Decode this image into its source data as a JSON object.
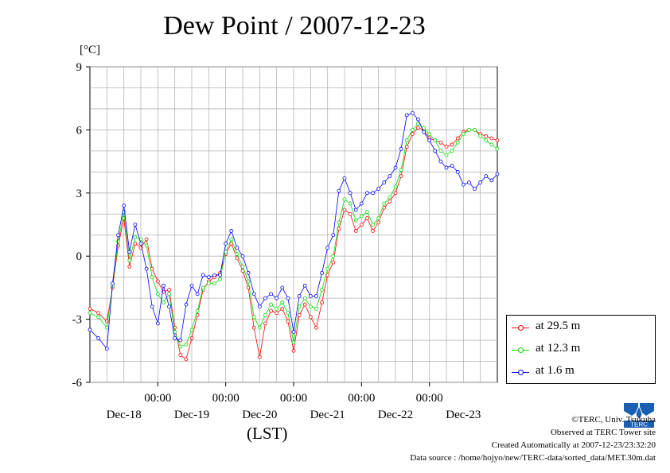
{
  "title": "Dew Point / 2007-12-23",
  "unit": "[°C]",
  "xlabel": "(LST)",
  "legend": [
    {
      "label": "at 29.5 m"
    },
    {
      "label": "at 12.3 m"
    },
    {
      "label": "at 1.6 m"
    }
  ],
  "credits": {
    "copyright": "©TERC, Univ. Tsukuba",
    "observed": "Observed at TERC Tower site",
    "created": "Created Automatically at 2007-12-23/23:32:20",
    "source": "Data source : /home/hojyo/new/TERC-data/sorted_data/MET.30m.dat"
  },
  "logo_text": "TERC",
  "chart_data": {
    "type": "line",
    "title": "Dew Point / 2007-12-23",
    "ylabel": "[°C]",
    "xlabel": "(LST)",
    "ylim": [
      -6,
      9
    ],
    "yticks": [
      -6,
      -3,
      0,
      3,
      6,
      9
    ],
    "xlim": [
      0,
      144
    ],
    "x_unit": "hours from 2007-12-17 24:00 (start of chart)",
    "xticks": [
      {
        "x": 24,
        "time": "00:00",
        "date": "Dec-18"
      },
      {
        "x": 48,
        "time": "00:00",
        "date": "Dec-19"
      },
      {
        "x": 72,
        "time": "00:00",
        "date": "Dec-20"
      },
      {
        "x": 96,
        "time": "00:00",
        "date": "Dec-21"
      },
      {
        "x": 120,
        "time": "00:00",
        "date": "Dec-22"
      }
    ],
    "date_labels": [
      "Dec-18",
      "Dec-19",
      "Dec-20",
      "Dec-21",
      "Dec-22",
      "Dec-23"
    ],
    "grid": true,
    "legend_position": "right",
    "series": [
      {
        "name": "at 29.5 m",
        "color": "#ff0000",
        "x": [
          0,
          3,
          6,
          8,
          10,
          12,
          14,
          16,
          18,
          20,
          22,
          24,
          26,
          28,
          30,
          32,
          34,
          36,
          38,
          40,
          42,
          44,
          46,
          48,
          50,
          52,
          54,
          56,
          58,
          60,
          62,
          64,
          66,
          68,
          70,
          72,
          74,
          76,
          78,
          80,
          82,
          84,
          86,
          88,
          90,
          92,
          94,
          96,
          98,
          100,
          102,
          104,
          106,
          108,
          110,
          112,
          114,
          116,
          118,
          120,
          122,
          124,
          126,
          128,
          130,
          132,
          134,
          136,
          138,
          140,
          142,
          144
        ],
        "values": [
          -2.5,
          -2.7,
          -3.1,
          -1.5,
          0.5,
          1.8,
          -0.5,
          0.6,
          0.4,
          0.8,
          -0.6,
          -1.2,
          -1.7,
          -1.6,
          -3.4,
          -4.7,
          -4.9,
          -3.9,
          -2.8,
          -1.6,
          -1.2,
          -1.0,
          -0.8,
          0.1,
          0.6,
          -0.1,
          -0.7,
          -1.5,
          -3.4,
          -4.8,
          -3.2,
          -2.6,
          -2.7,
          -2.5,
          -3.1,
          -4.5,
          -2.8,
          -2.3,
          -2.9,
          -3.4,
          -2.2,
          -0.9,
          -0.3,
          1.3,
          2.2,
          2.0,
          1.2,
          1.5,
          1.8,
          1.2,
          1.6,
          2.3,
          2.6,
          3.0,
          3.8,
          5.2,
          5.8,
          6.1,
          6.0,
          5.6,
          5.5,
          5.4,
          5.2,
          5.3,
          5.6,
          5.9,
          6.0,
          6.0,
          5.8,
          5.7,
          5.6,
          5.5
        ],
        "x_offset": 0
      },
      {
        "name": "at 12.3 m",
        "color": "#00dd00",
        "x": [
          0,
          3,
          6,
          8,
          10,
          12,
          14,
          16,
          18,
          20,
          22,
          24,
          26,
          28,
          30,
          32,
          34,
          36,
          38,
          40,
          42,
          44,
          46,
          48,
          50,
          52,
          54,
          56,
          58,
          60,
          62,
          64,
          66,
          68,
          70,
          72,
          74,
          76,
          78,
          80,
          82,
          84,
          86,
          88,
          90,
          92,
          94,
          96,
          98,
          100,
          102,
          104,
          106,
          108,
          110,
          112,
          114,
          116,
          118,
          120,
          122,
          124,
          126,
          128,
          130,
          132,
          134,
          136,
          138,
          140,
          142,
          144
        ],
        "values": [
          -2.7,
          -2.9,
          -3.4,
          -1.4,
          0.7,
          2.1,
          -0.2,
          0.9,
          0.8,
          0.5,
          -1.0,
          -1.8,
          -2.2,
          -1.8,
          -3.6,
          -4.3,
          -4.2,
          -3.5,
          -2.6,
          -1.5,
          -1.3,
          -1.3,
          -1.1,
          0.2,
          0.8,
          0.1,
          -0.5,
          -1.2,
          -2.9,
          -3.4,
          -2.8,
          -2.3,
          -2.5,
          -2.2,
          -2.7,
          -4.1,
          -2.4,
          -2.0,
          -2.4,
          -2.5,
          -1.6,
          -0.6,
          0.0,
          1.6,
          2.7,
          2.5,
          1.7,
          1.9,
          2.1,
          1.5,
          1.8,
          2.5,
          2.8,
          3.3,
          4.1,
          5.5,
          6.0,
          6.3,
          6.1,
          5.8,
          5.5,
          5.0,
          4.8,
          5.0,
          5.4,
          5.8,
          6.0,
          6.0,
          5.7,
          5.5,
          5.3,
          5.1
        ],
        "x_offset": 0
      },
      {
        "name": "at 1.6 m",
        "color": "#0000ff",
        "x": [
          0,
          3,
          6,
          8,
          10,
          12,
          14,
          16,
          18,
          20,
          22,
          24,
          26,
          28,
          30,
          32,
          34,
          36,
          38,
          40,
          42,
          44,
          46,
          48,
          50,
          52,
          54,
          56,
          58,
          60,
          62,
          64,
          66,
          68,
          70,
          72,
          74,
          76,
          78,
          80,
          82,
          84,
          86,
          88,
          90,
          92,
          94,
          96,
          98,
          100,
          102,
          104,
          106,
          108,
          110,
          112,
          114,
          116,
          118,
          120,
          122,
          124,
          126,
          128,
          130,
          132,
          134,
          136,
          138,
          140,
          142,
          144
        ],
        "values": [
          -3.5,
          -3.9,
          -4.4,
          -1.3,
          1.0,
          2.4,
          0.2,
          1.5,
          0.6,
          -0.6,
          -2.4,
          -3.2,
          -1.4,
          -2.4,
          -3.9,
          -4.0,
          -2.3,
          -1.4,
          -1.8,
          -0.9,
          -1.0,
          -0.9,
          -0.9,
          0.6,
          1.2,
          0.4,
          0.0,
          -0.8,
          -1.8,
          -2.4,
          -2.0,
          -1.8,
          -2.0,
          -1.5,
          -2.0,
          -3.6,
          -1.9,
          -1.4,
          -1.9,
          -1.9,
          -0.8,
          0.4,
          1.0,
          3.1,
          3.7,
          3.0,
          2.2,
          2.5,
          3.0,
          3.0,
          3.2,
          3.5,
          3.8,
          4.2,
          5.1,
          6.7,
          6.8,
          6.5,
          5.9,
          5.5,
          5.0,
          4.5,
          4.2,
          4.3,
          4.0,
          3.4,
          3.5,
          3.2,
          3.5,
          3.8,
          3.6,
          3.9
        ],
        "x_offset": 0
      }
    ]
  }
}
